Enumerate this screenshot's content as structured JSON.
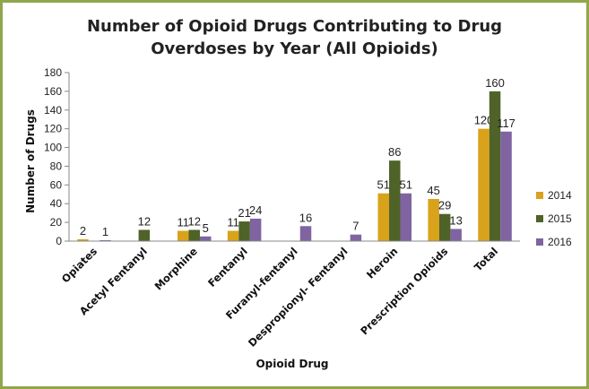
{
  "chart_data": {
    "type": "bar",
    "title": "Number of Opioid Drugs Contributing to Drug Overdoses by Year (All Opioids)",
    "title_lines": [
      "Number of Opioid Drugs Contributing to Drug",
      "Overdoses by Year (All Opioids)"
    ],
    "xlabel": "Opioid Drug",
    "ylabel": "Number of Drugs",
    "ylim": [
      0,
      180
    ],
    "yticks": [
      0,
      20,
      40,
      60,
      80,
      100,
      120,
      140,
      160,
      180
    ],
    "grid": false,
    "legend_position": "right",
    "categories": [
      "Opiates",
      "Acetyl Fentanyl",
      "Morphine",
      "Fentanyl",
      "Furanyl-fentanyl",
      "Despropionyl- Fentanyl",
      "Heroin",
      "Prescription Opioids",
      "Total"
    ],
    "series": [
      {
        "name": "2014",
        "color": "#d9a21b",
        "values": [
          2,
          null,
          11,
          11,
          null,
          null,
          51,
          45,
          120
        ],
        "labels": [
          "2",
          "",
          "11",
          "11",
          "",
          "",
          "51",
          "45",
          "120"
        ]
      },
      {
        "name": "2015",
        "color": "#4f6228",
        "values": [
          null,
          12,
          12,
          21,
          null,
          null,
          86,
          29,
          160
        ],
        "labels": [
          "",
          "12",
          "12",
          "21",
          "",
          "",
          "86",
          "29",
          "160"
        ]
      },
      {
        "name": "2016",
        "color": "#8064a2",
        "values": [
          1,
          null,
          5,
          24,
          16,
          7,
          51,
          13,
          117
        ],
        "labels": [
          "1",
          "",
          "5",
          "24",
          "16",
          "7",
          "51",
          "13",
          "117"
        ]
      }
    ]
  }
}
